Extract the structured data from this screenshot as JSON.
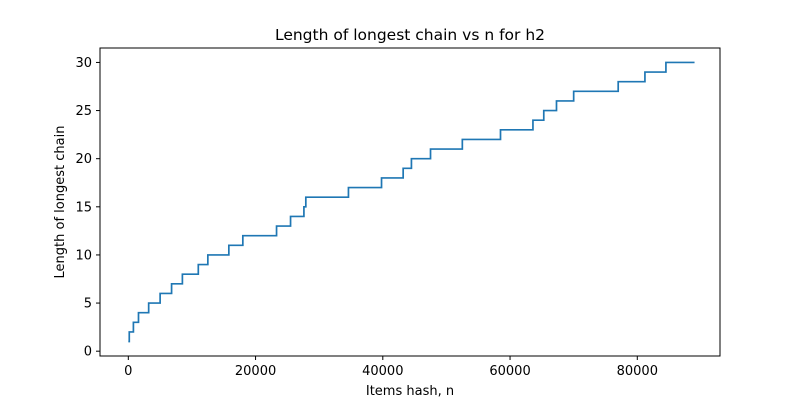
{
  "chart_data": {
    "type": "line",
    "title": "Length of longest chain vs n for h2",
    "xlabel": "Items hash, n",
    "ylabel": "Length of longest chain",
    "xlim": [
      -4450,
      93000
    ],
    "ylim": [
      -0.5,
      31.5
    ],
    "xticks": [
      0,
      20000,
      40000,
      60000,
      80000
    ],
    "yticks": [
      0,
      5,
      10,
      15,
      20,
      25,
      30
    ],
    "grid": false,
    "step": "post",
    "series": [
      {
        "color": "#1f77b4",
        "x": [
          0,
          150,
          800,
          1600,
          3200,
          5000,
          6800,
          8500,
          11000,
          12500,
          15800,
          18000,
          23300,
          25500,
          27600,
          27900,
          34600,
          39800,
          43200,
          44500,
          47500,
          52500,
          58500,
          63600,
          65300,
          67300,
          70000,
          77000,
          81200,
          84500,
          89000
        ],
        "y": [
          1,
          2,
          3,
          4,
          5,
          6,
          7,
          8,
          9,
          10,
          11,
          12,
          13,
          14,
          15,
          16,
          17,
          18,
          19,
          20,
          21,
          22,
          23,
          24,
          25,
          26,
          27,
          28,
          29,
          30,
          30
        ]
      }
    ]
  }
}
